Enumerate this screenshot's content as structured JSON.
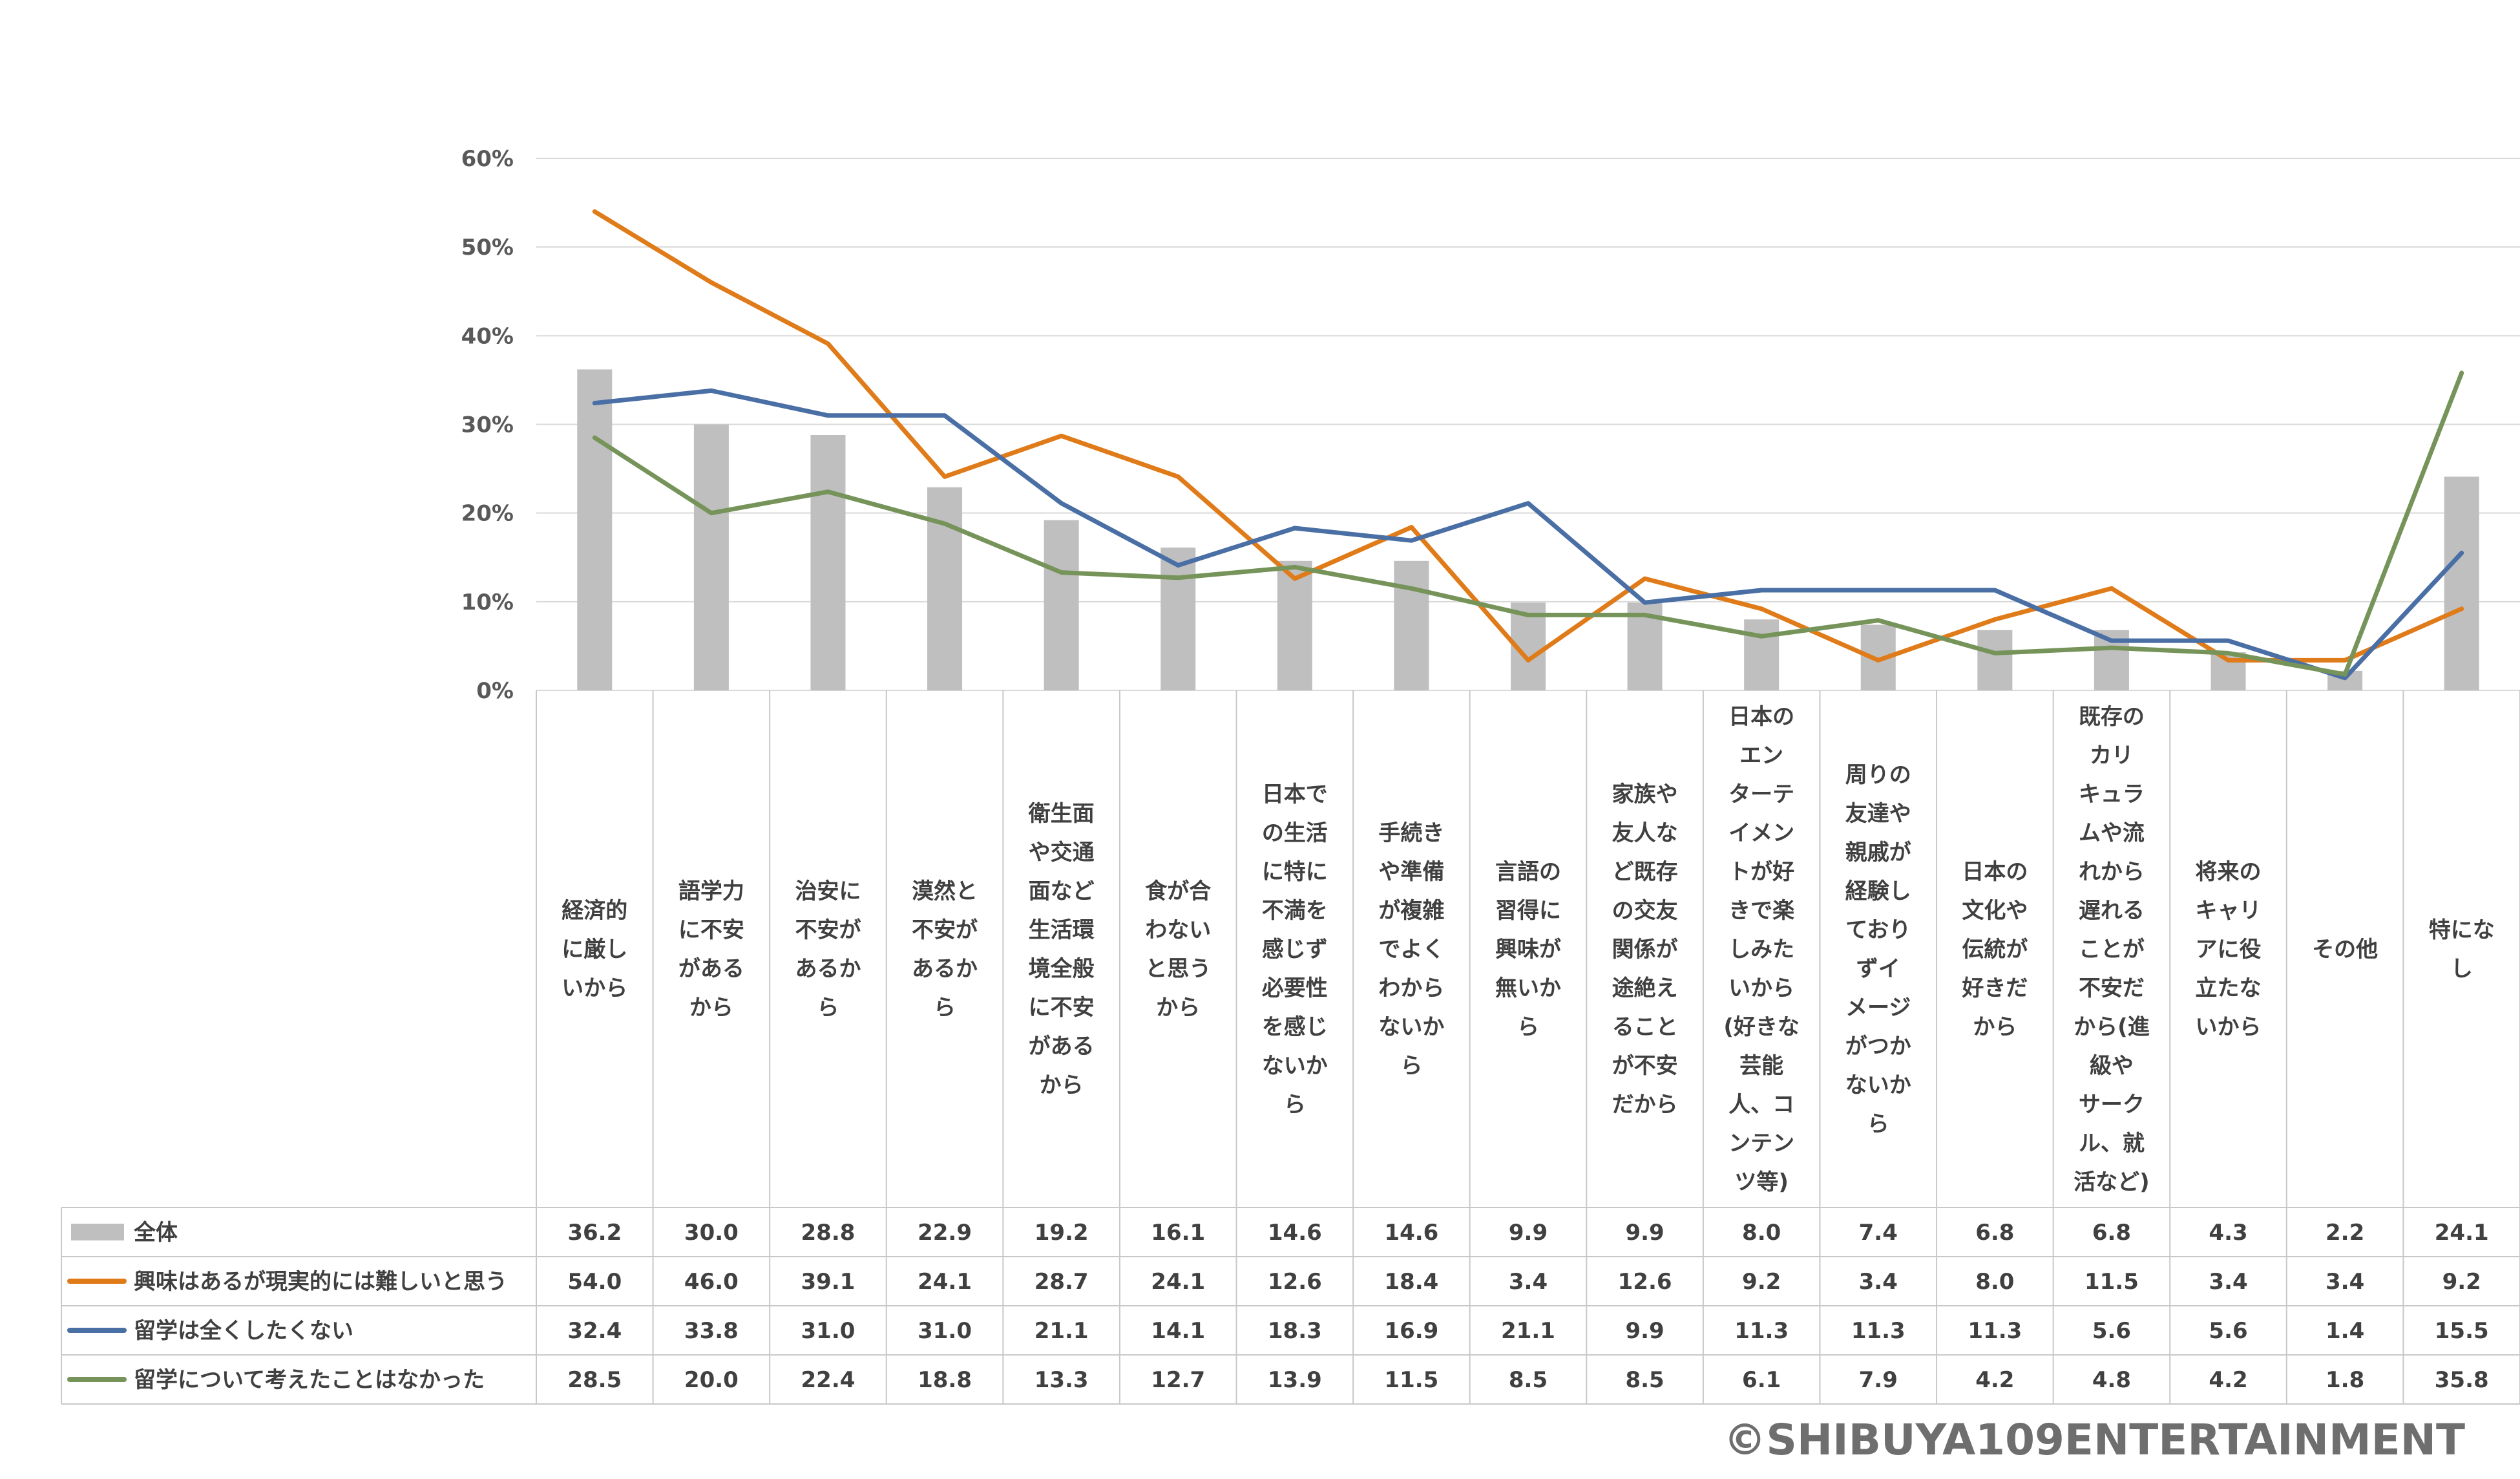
{
  "chart_data": {
    "type": "bar+line",
    "yticks": [
      "60%",
      "50%",
      "40%",
      "30%",
      "20%",
      "10%",
      "0%"
    ],
    "ylim": [
      0,
      60
    ],
    "categories": [
      "経済的に厳しいから",
      "語学力に不安があるから",
      "治安に不安があるから",
      "漠然と不安があるから",
      "衛生面や交通面など生活環境全般に不安があるから",
      "食が合わないと思うから",
      "日本での生活に特に不満を感じず必要性を感じないから",
      "手続きや準備が複雑でよくわからないから",
      "言語の習得に興味が無いから",
      "家族や友人など既存の交友関係が途絶えることが不安だから",
      "日本のエンターテイメントが好きで楽しみたいから(好きな芸能人、コンテンツ等)",
      "周りの友達や親戚が経験しておらずイメージがつかないから",
      "日本の文化や伝統が好きだから",
      "既存のカリキュラムや流れから遅れることが不安だから(進級やサークル、就活など)",
      "将来のキャリアに役立たないから",
      "その他",
      "特になし"
    ],
    "category_lines": [
      [
        "経済的",
        "に厳し",
        "いから"
      ],
      [
        "語学力",
        "に不安",
        "がある",
        "から"
      ],
      [
        "治安に",
        "不安が",
        "あるか",
        "ら"
      ],
      [
        "漠然と",
        "不安が",
        "あるか",
        "ら"
      ],
      [
        "衛生面",
        "や交通",
        "面など",
        "生活環",
        "境全般",
        "に不安",
        "がある",
        "から"
      ],
      [
        "食が合",
        "わない",
        "と思う",
        "から"
      ],
      [
        "日本で",
        "の生活",
        "に特に",
        "不満を",
        "感じず",
        "必要性",
        "を感じ",
        "ないか",
        "ら"
      ],
      [
        "手続き",
        "や準備",
        "が複雑",
        "でよく",
        "わから",
        "ないか",
        "ら"
      ],
      [
        "言語の",
        "習得に",
        "興味が",
        "無いか",
        "ら"
      ],
      [
        "家族や",
        "友人な",
        "ど既存",
        "の交友",
        "関係が",
        "途絶え",
        "ること",
        "が不安",
        "だから"
      ],
      [
        "日本の",
        "エン",
        "ターテ",
        "イメン",
        "トが好",
        "きで楽",
        "しみた",
        "いから",
        "(好きな",
        "芸能",
        "人、コ",
        "ンテン",
        "ツ等)"
      ],
      [
        "周りの",
        "友達や",
        "親戚が",
        "経験し",
        "ており",
        "ずイ",
        "メージ",
        "がつか",
        "ないか",
        "ら"
      ],
      [
        "日本の",
        "文化や",
        "伝統が",
        "好きだ",
        "から"
      ],
      [
        "既存の",
        "カリ",
        "キュラ",
        "ムや流",
        "れから",
        "遅れる",
        "ことが",
        "不安だ",
        "から(進",
        "級や",
        "サーク",
        "ル、就",
        "活など)"
      ],
      [
        "将来の",
        "キャリ",
        "アに役",
        "立たな",
        "いから"
      ],
      [
        "その他"
      ],
      [
        "特にな",
        "し"
      ]
    ],
    "series": [
      {
        "name": "全体",
        "type": "bar",
        "color": "#bfbfbf",
        "values": [
          36.2,
          30.0,
          28.8,
          22.9,
          19.2,
          16.1,
          14.6,
          14.6,
          9.9,
          9.9,
          8.0,
          7.4,
          6.8,
          6.8,
          4.3,
          2.2,
          24.1
        ],
        "labels": [
          "36.2",
          "30.0",
          "28.8",
          "22.9",
          "19.2",
          "16.1",
          "14.6",
          "14.6",
          "9.9",
          "9.9",
          "8.0",
          "7.4",
          "6.8",
          "6.8",
          "4.3",
          "2.2",
          "24.1"
        ]
      },
      {
        "name": "興味はあるが現実的には難しいと思う",
        "type": "line",
        "color": "#e07b1a",
        "values": [
          54.0,
          46.0,
          39.1,
          24.1,
          28.7,
          24.1,
          12.6,
          18.4,
          3.4,
          12.6,
          9.2,
          3.4,
          8.0,
          11.5,
          3.4,
          3.4,
          9.2
        ],
        "labels": [
          "54.0",
          "46.0",
          "39.1",
          "24.1",
          "28.7",
          "24.1",
          "12.6",
          "18.4",
          "3.4",
          "12.6",
          "9.2",
          "3.4",
          "8.0",
          "11.5",
          "3.4",
          "3.4",
          "9.2"
        ]
      },
      {
        "name": "留学は全くしたくない",
        "type": "line",
        "color": "#4a6fa5",
        "values": [
          32.4,
          33.8,
          31.0,
          31.0,
          21.1,
          14.1,
          18.3,
          16.9,
          21.1,
          9.9,
          11.3,
          11.3,
          11.3,
          5.6,
          5.6,
          1.4,
          15.5
        ],
        "labels": [
          "32.4",
          "33.8",
          "31.0",
          "31.0",
          "21.1",
          "14.1",
          "18.3",
          "16.9",
          "21.1",
          "9.9",
          "11.3",
          "11.3",
          "11.3",
          "5.6",
          "5.6",
          "1.4",
          "15.5"
        ]
      },
      {
        "name": "留学について考えたことはなかった",
        "type": "line",
        "color": "#76945a",
        "values": [
          28.5,
          20.0,
          22.4,
          18.8,
          13.3,
          12.7,
          13.9,
          11.5,
          8.5,
          8.5,
          6.1,
          7.9,
          4.2,
          4.8,
          4.2,
          1.8,
          35.8
        ],
        "labels": [
          "28.5",
          "20.0",
          "22.4",
          "18.8",
          "13.3",
          "12.7",
          "13.9",
          "11.5",
          "8.5",
          "8.5",
          "6.1",
          "7.9",
          "4.2",
          "4.8",
          "4.2",
          "1.8",
          "35.8"
        ]
      }
    ],
    "legend_placement": "data-table-left",
    "grid": true
  },
  "colors": {
    "grid": "#d9d9d9",
    "table_border": "#c8c8c8",
    "text": "#404040"
  },
  "copyright": "©SHIBUYA109ENTERTAINMENT"
}
